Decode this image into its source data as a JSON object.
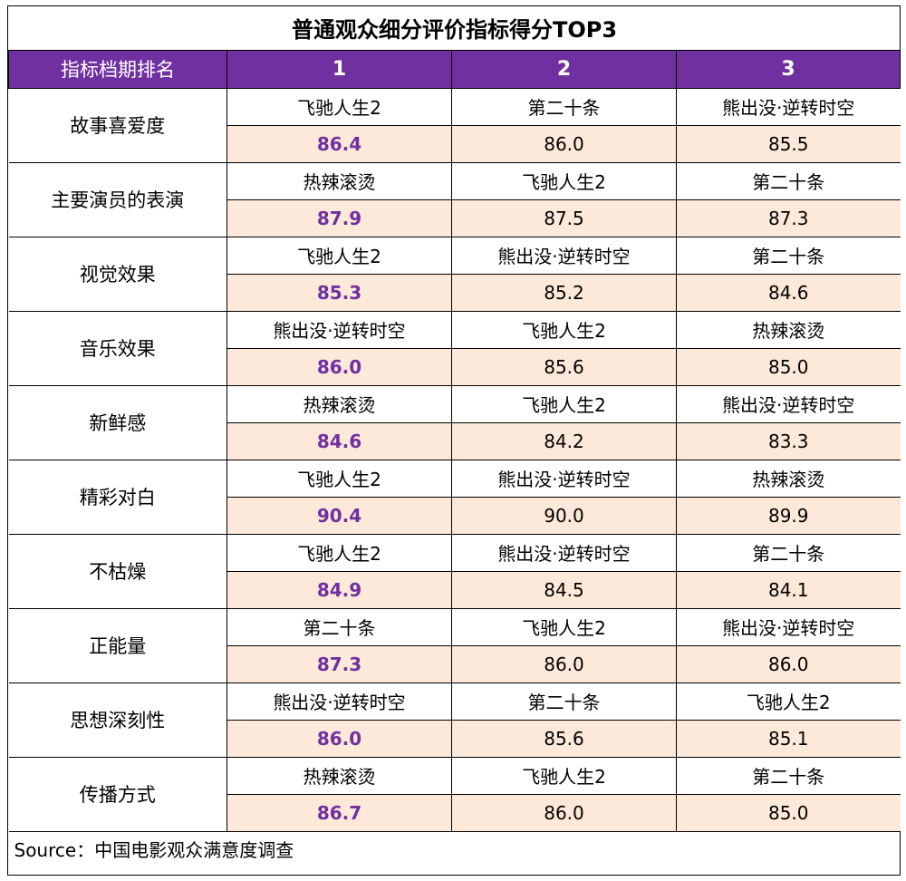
{
  "title": "普通观众细分评价指标得分TOP3",
  "header": {
    "first_col": "指标档期排名",
    "ranks": [
      "1",
      "2",
      "3"
    ]
  },
  "rows": [
    {
      "label": "故事喜爱度",
      "films": [
        "飞驰人生2",
        "第二十条",
        "熊出没·逆转时空"
      ],
      "scores": [
        "86.4",
        "86.0",
        "85.5"
      ]
    },
    {
      "label": "主要演员的表演",
      "films": [
        "热辣滚烫",
        "飞驰人生2",
        "第二十条"
      ],
      "scores": [
        "87.9",
        "87.5",
        "87.3"
      ]
    },
    {
      "label": "视觉效果",
      "films": [
        "飞驰人生2",
        "熊出没·逆转时空",
        "第二十条"
      ],
      "scores": [
        "85.3",
        "85.2",
        "84.6"
      ]
    },
    {
      "label": "音乐效果",
      "films": [
        "熊出没·逆转时空",
        "飞驰人生2",
        "热辣滚烫"
      ],
      "scores": [
        "86.0",
        "85.6",
        "85.0"
      ]
    },
    {
      "label": "新鲜感",
      "films": [
        "热辣滚烫",
        "飞驰人生2",
        "熊出没·逆转时空"
      ],
      "scores": [
        "84.6",
        "84.2",
        "83.3"
      ]
    },
    {
      "label": "精彩对白",
      "films": [
        "飞驰人生2",
        "熊出没·逆转时空",
        "热辣滚烫"
      ],
      "scores": [
        "90.4",
        "90.0",
        "89.9"
      ]
    },
    {
      "label": "不枯燥",
      "films": [
        "飞驰人生2",
        "熊出没·逆转时空",
        "第二十条"
      ],
      "scores": [
        "84.9",
        "84.5",
        "84.1"
      ]
    },
    {
      "label": "正能量",
      "films": [
        "第二十条",
        "飞驰人生2",
        "熊出没·逆转时空"
      ],
      "scores": [
        "87.3",
        "86.0",
        "86.0"
      ]
    },
    {
      "label": "思想深刻性",
      "films": [
        "熊出没·逆转时空",
        "第二十条",
        "飞驰人生2"
      ],
      "scores": [
        "86.0",
        "85.6",
        "85.1"
      ]
    },
    {
      "label": "传播方式",
      "films": [
        "热辣滚烫",
        "飞驰人生2",
        "第二十条"
      ],
      "scores": [
        "86.7",
        "86.0",
        "85.0"
      ]
    }
  ],
  "source": "Source：中国电影观众满意度调查",
  "colors": {
    "header_bg": "#7030a0",
    "header_text": "#ffffff",
    "score_bg": "#fde9d9",
    "top_score_text": "#7030a0"
  }
}
